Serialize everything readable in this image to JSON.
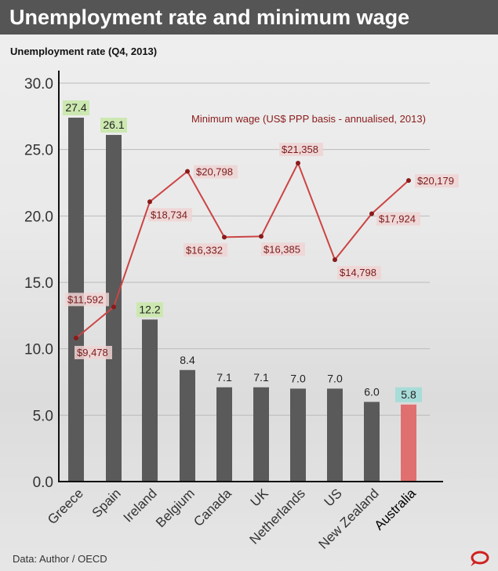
{
  "header": {
    "title": "Unemployment rate and minimum wage"
  },
  "footer": {
    "source": "Data: Author / OECD",
    "logo": "speech-bubble-logo"
  },
  "colors": {
    "bar": "#5a5a5a",
    "highlight_bar": "#e07070",
    "line": "#cc4444",
    "label_bg": "#f0d4d4",
    "label_text": "#7a1a1a",
    "value_bg_high": "#cce8b0",
    "value_bg_aus": "#a8dcd8"
  },
  "chart_data": {
    "type": "bar+line",
    "title": "Unemployment rate and minimum wage",
    "ylabel": "Unemployment rate (Q4, 2013)",
    "ylim": [
      0,
      30
    ],
    "yticks": [
      "0.0",
      "5.0",
      "10.0",
      "15.0",
      "20.0",
      "25.0",
      "30.0"
    ],
    "grid": true,
    "categories": [
      "Greece",
      "Spain",
      "Ireland",
      "Belgium",
      "Canada",
      "UK",
      "Netherlands",
      "US",
      "New Zealand",
      "Australia"
    ],
    "series": [
      {
        "type": "bar",
        "values": [
          27.4,
          26.1,
          12.2,
          8.4,
          7.1,
          7.1,
          7.0,
          7.0,
          6.0,
          5.8
        ],
        "labels": [
          "27.4",
          "26.1",
          "12.2",
          "8.4",
          "7.1",
          "7.1",
          "7.0",
          "7.0",
          "6.0",
          "5.8"
        ],
        "highlight": "Australia"
      },
      {
        "type": "line",
        "name": "Minimum wage (US$ PPP basis - annualised, 2013)",
        "values": [
          9478,
          11592,
          18734,
          20798,
          16332,
          16385,
          21358,
          14798,
          17924,
          20179
        ],
        "labels": [
          "$9,478",
          "$11,592",
          "$18,734",
          "$20,798",
          "$16,332",
          "$16,385",
          "$21,358",
          "$14,798",
          "$17,924",
          "$20,179"
        ]
      }
    ]
  }
}
